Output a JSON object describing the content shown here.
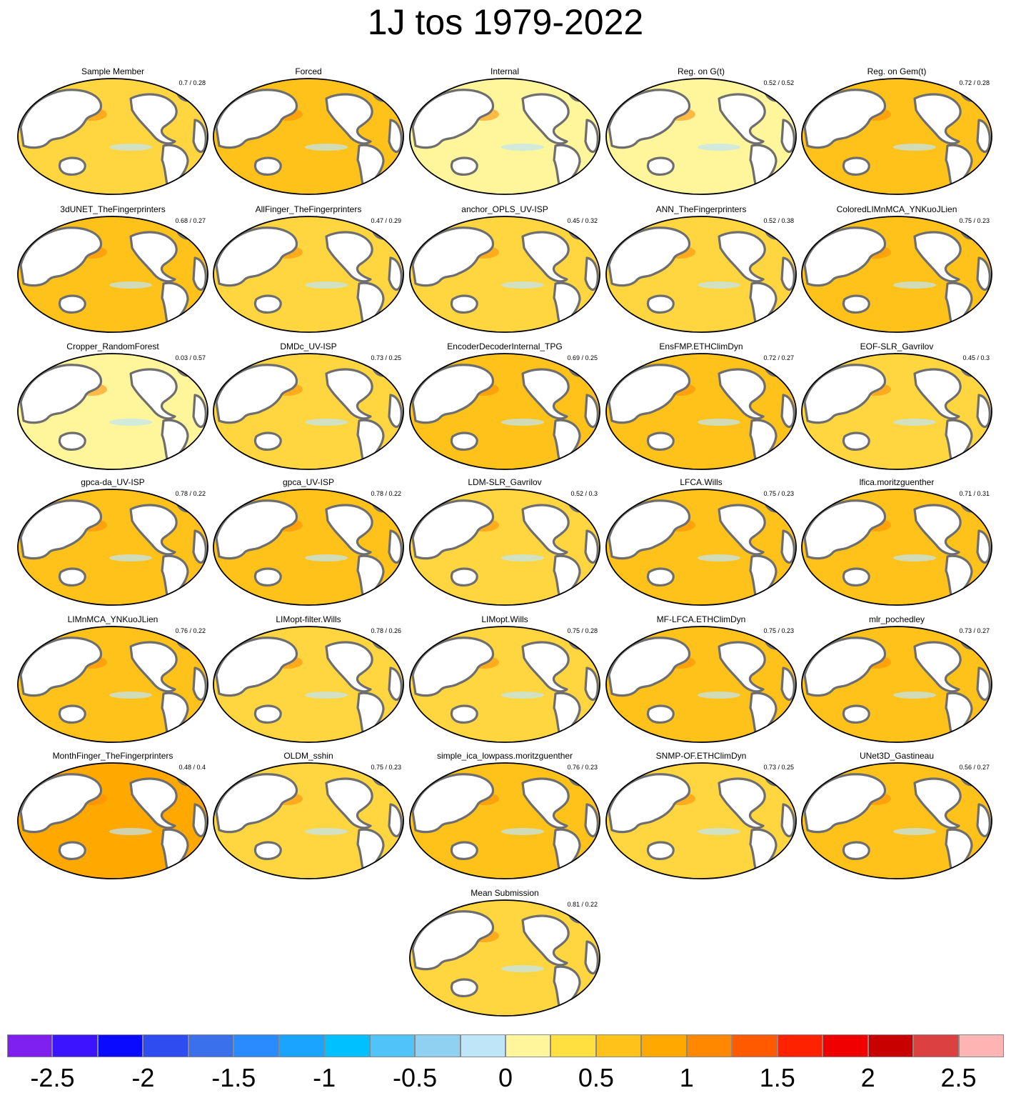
{
  "title": "1J tos 1979-2022",
  "panels": [
    {
      "name": "Sample Member",
      "score": "0.7 / 0.28",
      "fill": "#ffd640"
    },
    {
      "name": "Forced",
      "score": "",
      "fill": "#ffc21a"
    },
    {
      "name": "Internal",
      "score": "",
      "fill": "#fff59a"
    },
    {
      "name": "Reg. on G(t)",
      "score": "0.52 / 0.52",
      "fill": "#fff59a"
    },
    {
      "name": "Reg. on Gem(t)",
      "score": "0.72 / 0.28",
      "fill": "#ffc21a"
    },
    {
      "name": "3dUNET_TheFingerprinters",
      "score": "0.68 / 0.27",
      "fill": "#ffc21a"
    },
    {
      "name": "AllFinger_TheFingerprinters",
      "score": "0.47 / 0.29",
      "fill": "#ffd640"
    },
    {
      "name": "anchor_OPLS_UV-ISP",
      "score": "0.45 / 0.32",
      "fill": "#ffd640"
    },
    {
      "name": "ANN_TheFingerprinters",
      "score": "0.52 / 0.38",
      "fill": "#ffd640"
    },
    {
      "name": "ColoredLIMnMCA_YNKuoJLien",
      "score": "0.75 / 0.23",
      "fill": "#ffc21a"
    },
    {
      "name": "Cropper_RandomForest",
      "score": "0.03 / 0.57",
      "fill": "#fff59a"
    },
    {
      "name": "DMDc_UV-ISP",
      "score": "0.73 / 0.25",
      "fill": "#ffd640"
    },
    {
      "name": "EncoderDecoderInternal_TPG",
      "score": "0.69 / 0.25",
      "fill": "#ffc21a"
    },
    {
      "name": "EnsFMP.ETHClimDyn",
      "score": "0.72 / 0.27",
      "fill": "#ffc21a"
    },
    {
      "name": "EOF-SLR_Gavrilov",
      "score": "0.45 / 0.3",
      "fill": "#ffd640"
    },
    {
      "name": "gpca-da_UV-ISP",
      "score": "0.78 / 0.22",
      "fill": "#ffc21a"
    },
    {
      "name": "gpca_UV-ISP",
      "score": "0.78 / 0.22",
      "fill": "#ffc21a"
    },
    {
      "name": "LDM-SLR_Gavrilov",
      "score": "0.52 / 0.3",
      "fill": "#ffd640"
    },
    {
      "name": "LFCA.Wills",
      "score": "0.75 / 0.23",
      "fill": "#ffc21a"
    },
    {
      "name": "lfica.moritzguenther",
      "score": "0.71 / 0.31",
      "fill": "#ffc21a"
    },
    {
      "name": "LIMnMCA_YNKuoJLien",
      "score": "0.76 / 0.22",
      "fill": "#ffc21a"
    },
    {
      "name": "LIMopt-filter.Wills",
      "score": "0.78 / 0.26",
      "fill": "#ffd640"
    },
    {
      "name": "LIMopt.Wills",
      "score": "0.75 / 0.28",
      "fill": "#ffd640"
    },
    {
      "name": "MF-LFCA.ETHClimDyn",
      "score": "0.75 / 0.23",
      "fill": "#ffc21a"
    },
    {
      "name": "mlr_pochedley",
      "score": "0.73 / 0.27",
      "fill": "#ffc21a"
    },
    {
      "name": "MonthFinger_TheFingerprinters",
      "score": "0.48 / 0.4",
      "fill": "#ffa800"
    },
    {
      "name": "OLDM_sshin",
      "score": "0.75 / 0.23",
      "fill": "#ffd640"
    },
    {
      "name": "simple_ica_lowpass.moritzguenther",
      "score": "0.76 / 0.23",
      "fill": "#ffc21a"
    },
    {
      "name": "SNMP-OF.ETHClimDyn",
      "score": "0.73 / 0.25",
      "fill": "#ffd640"
    },
    {
      "name": "UNet3D_Gastineau",
      "score": "0.56 / 0.27",
      "fill": "#ffc21a"
    },
    {
      "name": "Mean Submission",
      "score": "0.81 / 0.22",
      "fill": "#ffd640"
    }
  ],
  "colorbar": {
    "colors": [
      "#8020f0",
      "#3c14ff",
      "#0a0aff",
      "#2e4cf0",
      "#3a70ec",
      "#2a8aff",
      "#1aa4ff",
      "#00c0ff",
      "#50c4f8",
      "#90d0f0",
      "#bee6f8",
      "#fff59a",
      "#ffe040",
      "#ffc21a",
      "#ffa800",
      "#ff8800",
      "#ff5a00",
      "#ff2200",
      "#f00000",
      "#c80000",
      "#dc4040",
      "#ffb4b4"
    ],
    "labels": [
      "-2.5",
      "-2",
      "-1.5",
      "-1",
      "-0.5",
      "0",
      "0.5",
      "1",
      "1.5",
      "2",
      "2.5"
    ]
  }
}
